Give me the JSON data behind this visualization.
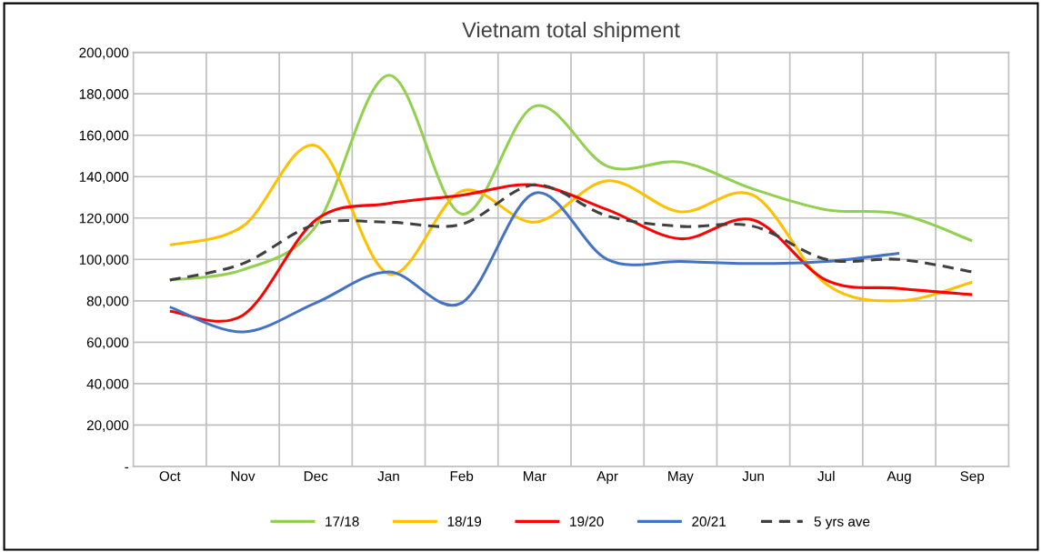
{
  "chart_data": {
    "type": "line",
    "title": "Vietnam total shipment",
    "categories": [
      "Oct",
      "Nov",
      "Dec",
      "Jan",
      "Feb",
      "Mar",
      "Apr",
      "May",
      "Jun",
      "Jul",
      "Aug",
      "Sep"
    ],
    "series": [
      {
        "name": "17/18",
        "color": "#92d050",
        "values": [
          90000,
          95000,
          116000,
          189000,
          122000,
          174000,
          145000,
          147000,
          134000,
          124000,
          122000,
          109000
        ]
      },
      {
        "name": "18/19",
        "color": "#ffc000",
        "values": [
          107000,
          116000,
          155000,
          93000,
          133000,
          118000,
          138000,
          123000,
          131000,
          88000,
          80000,
          89000
        ]
      },
      {
        "name": "19/20",
        "color": "#ff0000",
        "values": [
          75000,
          73000,
          119000,
          127000,
          131000,
          136000,
          124000,
          110000,
          119000,
          90000,
          86000,
          83000
        ]
      },
      {
        "name": "20/21",
        "color": "#4472c4",
        "values": [
          77000,
          65000,
          79000,
          94000,
          79000,
          132000,
          100000,
          99000,
          98000,
          99000,
          103000,
          null
        ]
      },
      {
        "name": "5 yrs ave",
        "color": "#404040",
        "line_style": "dashed",
        "values": [
          90000,
          98000,
          117000,
          118000,
          117000,
          136000,
          121000,
          116000,
          116000,
          100000,
          100000,
          94000
        ]
      }
    ],
    "ylim": [
      0,
      200000
    ],
    "yticks": [
      {
        "value": 0,
        "label": "-"
      },
      {
        "value": 20000,
        "label": "20,000"
      },
      {
        "value": 40000,
        "label": "40,000"
      },
      {
        "value": 60000,
        "label": "60,000"
      },
      {
        "value": 80000,
        "label": "80,000"
      },
      {
        "value": 100000,
        "label": "100,000"
      },
      {
        "value": 120000,
        "label": "120,000"
      },
      {
        "value": 140000,
        "label": "140,000"
      },
      {
        "value": 160000,
        "label": "160,000"
      },
      {
        "value": 180000,
        "label": "180,000"
      },
      {
        "value": 200000,
        "label": "200,000"
      }
    ],
    "grid": true,
    "legend": "bottom",
    "marker": "none",
    "line_style": "solid"
  }
}
